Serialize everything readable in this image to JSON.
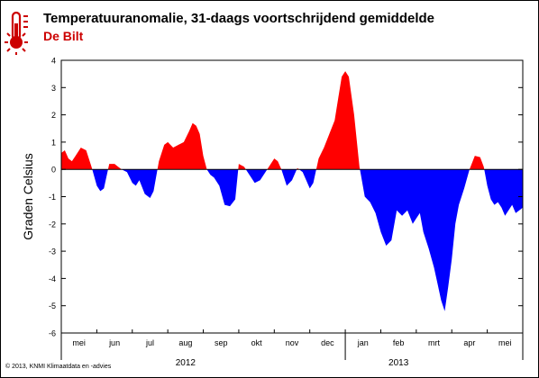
{
  "header": {
    "title": "Temperatuuranomalie, 31-daags voortschrijdend gemiddelde",
    "subtitle": "De Bilt"
  },
  "footer": {
    "credit": "© 2013, KNMI Klimaatdata en -advies"
  },
  "colors": {
    "positive": "#ff0000",
    "negative": "#0000ff",
    "thermometer": "#cc0000"
  },
  "icons": {
    "logo": "thermometer-icon"
  },
  "chart_data": {
    "type": "area",
    "title": "Temperatuuranomalie, 31-daags voortschrijdend gemiddelde",
    "subtitle": "De Bilt",
    "xlabel": "",
    "ylabel": "Graden Celsius",
    "ylim": [
      -6,
      4
    ],
    "yticks": [
      -6,
      -5,
      -4,
      -3,
      -2,
      -1,
      0,
      1,
      2,
      3,
      4
    ],
    "xlim": [
      0,
      13
    ],
    "month_labels": [
      "mei",
      "jun",
      "jul",
      "aug",
      "sep",
      "okt",
      "nov",
      "dec",
      "jan",
      "feb",
      "mrt",
      "apr",
      "mei"
    ],
    "year_labels": [
      {
        "label": "2012",
        "at": 3.5
      },
      {
        "label": "2013",
        "at": 9.5
      }
    ],
    "grid": false,
    "series": [
      {
        "x": [
          0.0,
          0.1,
          0.2,
          0.3,
          0.4,
          0.55,
          0.7,
          0.85,
          1.0,
          1.1,
          1.2,
          1.35,
          1.5,
          1.6,
          1.7,
          1.85,
          2.0,
          2.1,
          2.2,
          2.35,
          2.5,
          2.6,
          2.75,
          2.9,
          3.0,
          3.15,
          3.3,
          3.45,
          3.6,
          3.7,
          3.8,
          3.9,
          4.0,
          4.1,
          4.2,
          4.3,
          4.45,
          4.6,
          4.75,
          4.9,
          5.0,
          5.15,
          5.3,
          5.45,
          5.6,
          5.75,
          5.9,
          6.0,
          6.1,
          6.2,
          6.35,
          6.5,
          6.65,
          6.8,
          7.0,
          7.1,
          7.25,
          7.4,
          7.55,
          7.7,
          7.8,
          7.9,
          8.0,
          8.1,
          8.25,
          8.4,
          8.55,
          8.7,
          8.85,
          9.0,
          9.15,
          9.3,
          9.45,
          9.6,
          9.75,
          9.9,
          10.0,
          10.1,
          10.2,
          10.35,
          10.5,
          10.6,
          10.7,
          10.8,
          10.9,
          11.0,
          11.1,
          11.2,
          11.35,
          11.5,
          11.65,
          11.8,
          11.9,
          12.0,
          12.1,
          12.2,
          12.3,
          12.4,
          12.5,
          12.6,
          12.7,
          12.8,
          12.9,
          13.0
        ],
        "values": [
          0.6,
          0.7,
          0.4,
          0.3,
          0.5,
          0.8,
          0.7,
          0.1,
          -0.6,
          -0.8,
          -0.7,
          0.2,
          0.2,
          0.1,
          0.0,
          -0.1,
          -0.5,
          -0.6,
          -0.4,
          -0.9,
          -1.05,
          -0.8,
          0.3,
          0.9,
          1.0,
          0.8,
          0.9,
          1.0,
          1.4,
          1.7,
          1.6,
          1.3,
          0.5,
          0.0,
          -0.2,
          -0.3,
          -0.6,
          -1.3,
          -1.35,
          -1.1,
          0.2,
          0.1,
          -0.2,
          -0.5,
          -0.4,
          -0.1,
          0.2,
          0.4,
          0.3,
          0.0,
          -0.6,
          -0.4,
          0.05,
          -0.1,
          -0.7,
          -0.5,
          0.4,
          0.8,
          1.3,
          1.8,
          2.6,
          3.4,
          3.6,
          3.4,
          2.0,
          0.1,
          -1.0,
          -1.2,
          -1.6,
          -2.3,
          -2.8,
          -2.6,
          -1.5,
          -1.7,
          -1.5,
          -2.0,
          -1.8,
          -1.6,
          -2.3,
          -2.9,
          -3.6,
          -4.2,
          -4.8,
          -5.2,
          -4.3,
          -3.3,
          -2.0,
          -1.3,
          -0.7,
          0.0,
          0.5,
          0.45,
          0.1,
          -0.6,
          -1.1,
          -1.3,
          -1.2,
          -1.4,
          -1.7,
          -1.5,
          -1.3,
          -1.6,
          -1.5,
          -1.4
        ]
      }
    ]
  }
}
